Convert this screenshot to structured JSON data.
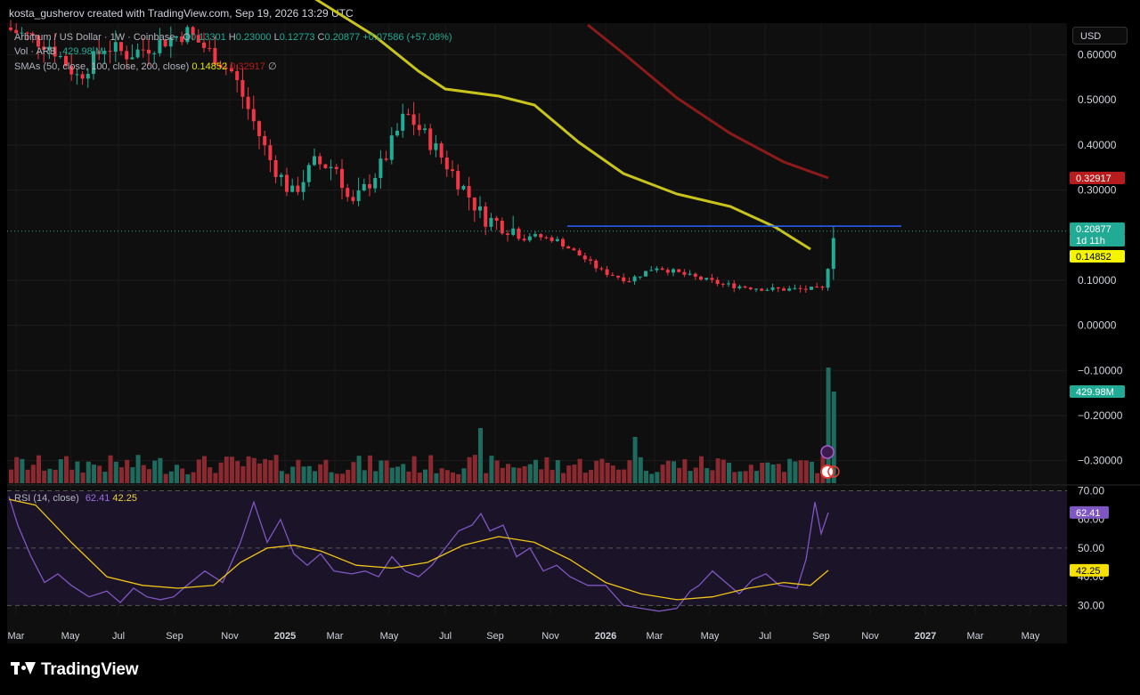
{
  "header": {
    "credit": "kosta_gusherov created with TradingView.com, Sep 19, 2026 13:29 UTC"
  },
  "legend": {
    "symbol": "Arbitrum / US Dollar · 1W · Coinbase",
    "o_label": "O",
    "o_value": "0.13301",
    "h_label": "H",
    "h_value": "0.23000",
    "l_label": "L",
    "l_value": "0.12773",
    "c_label": "C",
    "c_value": "0.20877",
    "change": "+0.07586 (+57.08%)",
    "vol_label": "Vol · ARB",
    "vol_value": "429.98 M",
    "sma_label": "SMAs (50, close, 100, close, 200, close)",
    "sma50_value": "0.14852",
    "sma100_value": "0.32917",
    "sma200_value": "∅",
    "rsi_label": "RSI (14, close)",
    "rsi_value": "62.41",
    "rsi_ma_value": "42.25"
  },
  "currency_button": "USD",
  "price_axis": {
    "ticks": [
      "0.60000",
      "0.50000",
      "0.40000",
      "0.30000",
      "0.10000",
      "0.00000",
      "−0.10000",
      "−0.20000",
      "−0.30000"
    ],
    "badges": [
      {
        "text": "0.32917",
        "color": "#b71c1c",
        "text_color": "#ffffff"
      },
      {
        "text": "0.20877",
        "color": "#22ab94",
        "text_color": "#ffffff"
      },
      {
        "text": "1d 11h",
        "color": "#22ab94",
        "text_color": "#ffffff"
      },
      {
        "text": "0.14852",
        "color": "#f5f500",
        "text_color": "#000000"
      },
      {
        "text": "429.98M",
        "color": "#22ab94",
        "text_color": "#ffffff"
      }
    ]
  },
  "rsi_axis": {
    "ticks": [
      "70.00",
      "60.00",
      "50.00",
      "40.00",
      "30.00"
    ],
    "badges": [
      {
        "text": "62.41",
        "color": "#7e57c2",
        "text_color": "#ffffff"
      },
      {
        "text": "42.25",
        "color": "#f5e000",
        "text_color": "#000000"
      }
    ]
  },
  "time_axis": [
    "Mar",
    "May",
    "Jul",
    "Sep",
    "Nov",
    "2025",
    "Mar",
    "May",
    "Jul",
    "Sep",
    "Nov",
    "2026",
    "Mar",
    "May",
    "Jul",
    "Sep",
    "Nov",
    "2027",
    "Mar",
    "May"
  ],
  "brand": "TradingView",
  "colors": {
    "up": "#22ab94",
    "down": "#f23645",
    "sma50": "#c8c41c",
    "sma100": "#8b1a1a",
    "resistance": "#2962ff",
    "rsi": "#7e57c2",
    "rsi_ma": "#f0c419"
  },
  "chart_data": {
    "type": "candlestick",
    "interval": "1W",
    "ylim": [
      -0.35,
      0.67
    ],
    "resistance_level": 0.22,
    "sma50": [
      [
        0.37,
        0.7
      ],
      [
        0.39,
        0.62
      ],
      [
        0.43,
        0.52
      ],
      [
        0.48,
        0.51
      ],
      [
        0.52,
        0.5
      ],
      [
        0.56,
        0.46
      ],
      [
        0.6,
        0.36
      ],
      [
        0.64,
        0.3
      ],
      [
        0.69,
        0.28
      ],
      [
        0.73,
        0.24
      ],
      [
        0.77,
        0.15
      ]
    ],
    "sma100": [
      [
        0.58,
        0.67
      ],
      [
        0.64,
        0.53
      ],
      [
        0.7,
        0.41
      ],
      [
        0.73,
        0.37
      ],
      [
        0.78,
        0.33
      ]
    ],
    "rsi": {
      "ylim": [
        27,
        72
      ],
      "levels": [
        70,
        50,
        30
      ],
      "last_rsi": 62.41,
      "last_ma": 42.25
    }
  }
}
